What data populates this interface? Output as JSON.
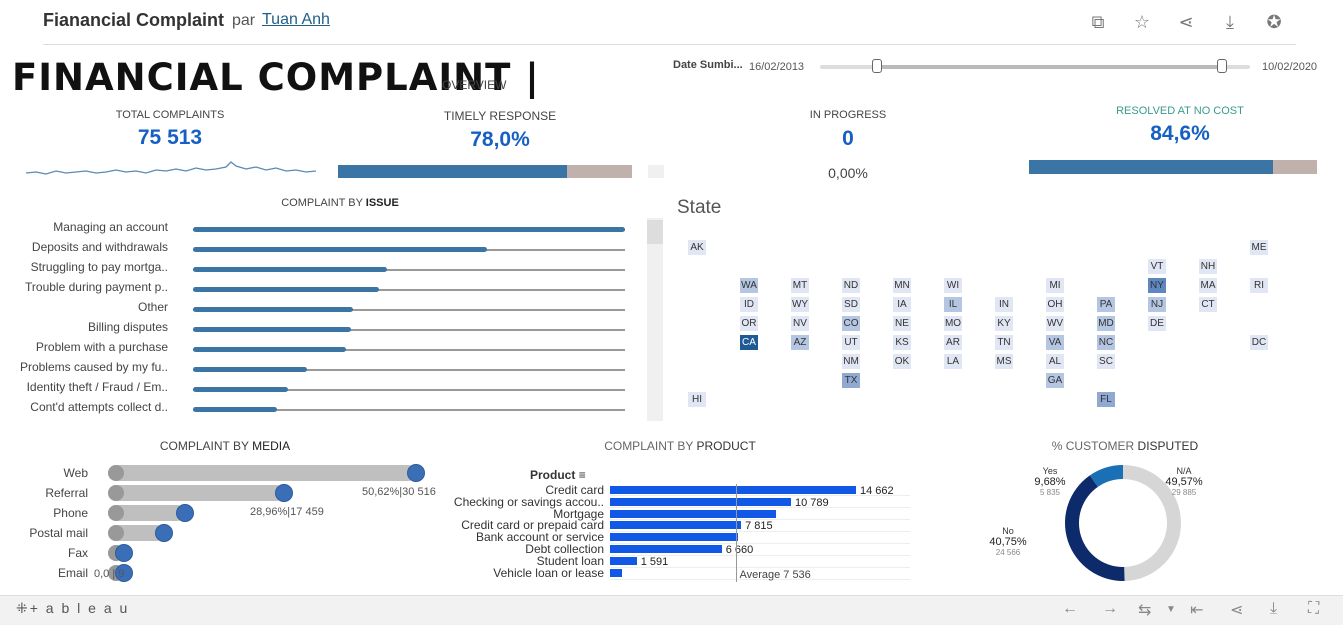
{
  "header": {
    "title": "Fianancial Complaint",
    "par": "par",
    "author": "Tuan Anh"
  },
  "main": {
    "title": "FINANCIAL COMPLAINT |",
    "subtitle": "OVERVIEW"
  },
  "date_filter": {
    "label": "Date Sumbi...",
    "start": "16/02/2013",
    "end": "10/02/2020"
  },
  "kpis": {
    "total": {
      "label": "TOTAL COMPLAINTS",
      "value": "75 513"
    },
    "timely": {
      "label": "TIMELY RESPONSE",
      "value": "78,0%",
      "fraction": 0.78
    },
    "progress": {
      "label": "IN PROGRESS",
      "value": "0",
      "pct": "0,00%"
    },
    "resolved": {
      "label": "RESOLVED AT NO COST",
      "value": "84,6%",
      "fraction": 0.846
    }
  },
  "issue_chart": {
    "title_pre": "COMPLAINT BY",
    "title_bold": "ISSUE",
    "items": [
      {
        "label": "Managing an account",
        "value": 1.0
      },
      {
        "label": "Deposits and withdrawals",
        "value": 0.68
      },
      {
        "label": "Struggling to pay mortga..",
        "value": 0.45
      },
      {
        "label": "Trouble during payment p..",
        "value": 0.43
      },
      {
        "label": "Other",
        "value": 0.37
      },
      {
        "label": "Billing disputes",
        "value": 0.365
      },
      {
        "label": "Problem with a purchase",
        "value": 0.355
      },
      {
        "label": "Problems caused by my fu..",
        "value": 0.265
      },
      {
        "label": "Identity theft / Fraud / Em..",
        "value": 0.22
      },
      {
        "label": "Cont'd attempts collect d..",
        "value": 0.195
      }
    ]
  },
  "state_map": {
    "title": "State",
    "tiles": [
      {
        "code": "AK",
        "c": 0,
        "r": 0,
        "v": 1
      },
      {
        "code": "ME",
        "c": 11,
        "r": 0,
        "v": 1
      },
      {
        "code": "VT",
        "c": 9,
        "r": 1,
        "v": 1
      },
      {
        "code": "NH",
        "c": 10,
        "r": 1,
        "v": 1
      },
      {
        "code": "WA",
        "c": 1,
        "r": 2,
        "v": 2
      },
      {
        "code": "MT",
        "c": 2,
        "r": 2,
        "v": 1
      },
      {
        "code": "ND",
        "c": 3,
        "r": 2,
        "v": 1
      },
      {
        "code": "MN",
        "c": 4,
        "r": 2,
        "v": 1
      },
      {
        "code": "WI",
        "c": 5,
        "r": 2,
        "v": 1
      },
      {
        "code": "MI",
        "c": 7,
        "r": 2,
        "v": 1
      },
      {
        "code": "NY",
        "c": 9,
        "r": 2,
        "v": 4
      },
      {
        "code": "MA",
        "c": 10,
        "r": 2,
        "v": 1
      },
      {
        "code": "RI",
        "c": 11,
        "r": 2,
        "v": 1
      },
      {
        "code": "ID",
        "c": 1,
        "r": 3,
        "v": 1
      },
      {
        "code": "WY",
        "c": 2,
        "r": 3,
        "v": 1
      },
      {
        "code": "SD",
        "c": 3,
        "r": 3,
        "v": 1
      },
      {
        "code": "IA",
        "c": 4,
        "r": 3,
        "v": 1
      },
      {
        "code": "IL",
        "c": 5,
        "r": 3,
        "v": 2
      },
      {
        "code": "IN",
        "c": 6,
        "r": 3,
        "v": 1
      },
      {
        "code": "OH",
        "c": 7,
        "r": 3,
        "v": 1
      },
      {
        "code": "PA",
        "c": 8,
        "r": 3,
        "v": 2
      },
      {
        "code": "NJ",
        "c": 9,
        "r": 3,
        "v": 2
      },
      {
        "code": "CT",
        "c": 10,
        "r": 3,
        "v": 1
      },
      {
        "code": "OR",
        "c": 1,
        "r": 4,
        "v": 1
      },
      {
        "code": "NV",
        "c": 2,
        "r": 4,
        "v": 1
      },
      {
        "code": "CO",
        "c": 3,
        "r": 4,
        "v": 2
      },
      {
        "code": "NE",
        "c": 4,
        "r": 4,
        "v": 1
      },
      {
        "code": "MO",
        "c": 5,
        "r": 4,
        "v": 1
      },
      {
        "code": "KY",
        "c": 6,
        "r": 4,
        "v": 1
      },
      {
        "code": "WV",
        "c": 7,
        "r": 4,
        "v": 1
      },
      {
        "code": "MD",
        "c": 8,
        "r": 4,
        "v": 2
      },
      {
        "code": "DE",
        "c": 9,
        "r": 4,
        "v": 1
      },
      {
        "code": "CA",
        "c": 1,
        "r": 5,
        "v": 5
      },
      {
        "code": "AZ",
        "c": 2,
        "r": 5,
        "v": 2
      },
      {
        "code": "UT",
        "c": 3,
        "r": 5,
        "v": 1
      },
      {
        "code": "KS",
        "c": 4,
        "r": 5,
        "v": 1
      },
      {
        "code": "AR",
        "c": 5,
        "r": 5,
        "v": 1
      },
      {
        "code": "TN",
        "c": 6,
        "r": 5,
        "v": 1
      },
      {
        "code": "VA",
        "c": 7,
        "r": 5,
        "v": 2
      },
      {
        "code": "NC",
        "c": 8,
        "r": 5,
        "v": 2
      },
      {
        "code": "DC",
        "c": 11,
        "r": 5,
        "v": 1
      },
      {
        "code": "NM",
        "c": 3,
        "r": 6,
        "v": 1
      },
      {
        "code": "OK",
        "c": 4,
        "r": 6,
        "v": 1
      },
      {
        "code": "LA",
        "c": 5,
        "r": 6,
        "v": 1
      },
      {
        "code": "MS",
        "c": 6,
        "r": 6,
        "v": 1
      },
      {
        "code": "AL",
        "c": 7,
        "r": 6,
        "v": 1
      },
      {
        "code": "SC",
        "c": 8,
        "r": 6,
        "v": 1
      },
      {
        "code": "TX",
        "c": 3,
        "r": 7,
        "v": 3
      },
      {
        "code": "GA",
        "c": 7,
        "r": 7,
        "v": 2
      },
      {
        "code": "HI",
        "c": 0,
        "r": 8,
        "v": 1
      },
      {
        "code": "FL",
        "c": 8,
        "r": 8,
        "v": 3
      }
    ]
  },
  "media_chart": {
    "title_pre": "COMPLAINT BY",
    "title_bold": "MEDIA",
    "items": [
      {
        "label": "Web",
        "value": 30516,
        "annot": "50,62%|30 516"
      },
      {
        "label": "Referral",
        "value": 17459,
        "annot": "28,96%|17 459"
      },
      {
        "label": "Phone",
        "value": 7600,
        "annot": ""
      },
      {
        "label": "Postal mail",
        "value": 5500,
        "annot": ""
      },
      {
        "label": "Fax",
        "value": 1000,
        "annot": ""
      },
      {
        "label": "Email",
        "value": 9,
        "annot": "0,0 | 9"
      }
    ]
  },
  "product_chart": {
    "title_pre": "COMPLAINT BY",
    "title_bold": "PRODUCT",
    "header": "Product",
    "average_label": "Average 7 536",
    "average": 7536,
    "max": 14662,
    "items": [
      {
        "label": "Credit card",
        "value": 14662,
        "text": "14 662"
      },
      {
        "label": "Checking or savings accou..",
        "value": 10789,
        "text": "10 789"
      },
      {
        "label": "Mortgage",
        "value": 9900,
        "text": ""
      },
      {
        "label": "Credit card or prepaid card",
        "value": 7815,
        "text": "7 815"
      },
      {
        "label": "Bank account or service",
        "value": 7600,
        "text": ""
      },
      {
        "label": "Debt collection",
        "value": 6660,
        "text": "6 660"
      },
      {
        "label": "Student loan",
        "value": 1591,
        "text": "1 591"
      },
      {
        "label": "Vehicle loan or lease",
        "value": 700,
        "text": ""
      }
    ]
  },
  "disputed_chart": {
    "title_pre": "% CUSTOMER",
    "title_bold": "DISPUTED",
    "slices": [
      {
        "label": "N/A",
        "pct": "49,57%",
        "count": "29 885",
        "value": 49.57,
        "color": "#d6d6d6"
      },
      {
        "label": "No",
        "pct": "40,75%",
        "count": "24 566",
        "value": 40.75,
        "color": "#0d2a6b"
      },
      {
        "label": "Yes",
        "pct": "9,68%",
        "count": "5 835",
        "value": 9.68,
        "color": "#1a6fb5"
      }
    ]
  },
  "footer": {
    "brand": "+ a b l e a u"
  },
  "colors": {
    "bar": "#3a75a5",
    "bar_rest": "#c1b1ad",
    "blue_bright": "#1158e6",
    "kpi_blue": "#1660c4"
  }
}
